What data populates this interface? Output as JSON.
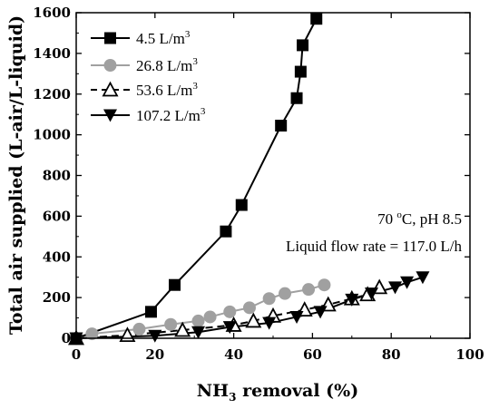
{
  "chart_data": {
    "type": "line",
    "xlabel": "NH3 removal (%)",
    "xlabel_parts": {
      "pre": "NH",
      "sub": "3",
      "post": " removal (%)"
    },
    "ylabel": "Total air supplied (L-air/L-liquid)",
    "xlim": [
      0,
      100
    ],
    "ylim": [
      0,
      1600
    ],
    "xticks": [
      0,
      20,
      40,
      60,
      80,
      100
    ],
    "yticks": [
      0,
      200,
      400,
      600,
      800,
      1000,
      1200,
      1400,
      1600
    ],
    "legend_position": "top-left",
    "annotations": [
      {
        "parts": {
          "pre": "70 ",
          "sup": "o",
          "post": "C, pH 8.5"
        }
      },
      {
        "text": "Liquid flow rate = 117.0 L/h"
      }
    ],
    "series": [
      {
        "name": "4.5 L/m3",
        "label_parts": {
          "pre": "4.5 L/m",
          "sup": "3"
        },
        "marker": "square-filled",
        "line": "solid",
        "color": "#000000",
        "x": [
          0,
          19,
          25,
          38,
          42,
          52,
          56,
          57,
          57.5,
          61
        ],
        "y": [
          0,
          130,
          262,
          525,
          655,
          1045,
          1180,
          1310,
          1440,
          1570
        ]
      },
      {
        "name": "26.8 L/m3",
        "label_parts": {
          "pre": "26.8 L/m",
          "sup": "3"
        },
        "marker": "circle-filled",
        "line": "solid",
        "color": "#a0a0a0",
        "x": [
          0,
          4,
          16,
          24,
          31,
          34,
          39,
          44,
          49,
          53,
          59,
          63
        ],
        "y": [
          0,
          22,
          45,
          68,
          85,
          105,
          130,
          150,
          195,
          220,
          240,
          262
        ]
      },
      {
        "name": "53.6 L/m3",
        "label_parts": {
          "pre": "53.6 L/m",
          "sup": "3"
        },
        "marker": "triangle-up-open",
        "line": "dashed",
        "color": "#000000",
        "x": [
          0,
          13,
          27,
          40,
          45,
          50,
          58,
          64,
          70,
          74,
          77
        ],
        "y": [
          0,
          15,
          40,
          65,
          85,
          110,
          140,
          165,
          195,
          215,
          250
        ]
      },
      {
        "name": "107.2 L/m3",
        "label_parts": {
          "pre": "107.2 L/m",
          "sup": "3"
        },
        "marker": "triangle-down-filled",
        "line": "solid",
        "color": "#000000",
        "x": [
          0,
          20,
          31,
          39,
          49,
          56,
          62,
          70,
          75,
          81,
          84,
          88
        ],
        "y": [
          0,
          12,
          30,
          55,
          75,
          105,
          130,
          190,
          220,
          250,
          275,
          300
        ]
      }
    ]
  }
}
